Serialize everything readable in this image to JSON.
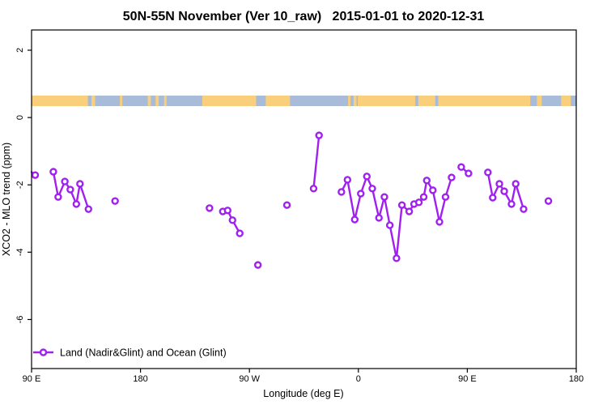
{
  "chart_data": {
    "type": "scatter-line",
    "title": "50N-55N November (Ver 10_raw)   2015-01-01 to 2020-12-31",
    "xlabel": "Longitude (deg E)",
    "ylabel": "XCO2 - MLO trend (ppm)",
    "legend": {
      "label": "Land (Nadir&Glint) and Ocean (Glint)"
    },
    "colors": {
      "series": "#A020F0",
      "land": "#F9CF7B",
      "ocean": "#A8BBD8",
      "axis": "#000000"
    },
    "x_axis_wrap_ticks": [
      {
        "lon": 90,
        "label": "90 E"
      },
      {
        "lon": 180,
        "label": "180"
      },
      {
        "lon": 270,
        "label": "90 W"
      },
      {
        "lon": 360,
        "label": "0"
      },
      {
        "lon": 450,
        "label": "90 E"
      },
      {
        "lon": 540,
        "label": "180"
      }
    ],
    "y_ticks": [
      {
        "value": 2,
        "label": "2"
      },
      {
        "value": 0,
        "label": "0"
      },
      {
        "value": -2,
        "label": "-2"
      },
      {
        "value": -4,
        "label": "-4"
      },
      {
        "value": -6,
        "label": "-6"
      }
    ],
    "xlim_axis": [
      90,
      540
    ],
    "ylim": [
      -7.46,
      2.6
    ],
    "map_band": {
      "top_value": 0.652,
      "bottom_value": 0.339,
      "ocean_extent": [
        90,
        540
      ],
      "land_segments": [
        [
          90,
          136.5
        ],
        [
          139.5,
          142.5
        ],
        [
          163,
          165
        ],
        [
          186,
          188.5
        ],
        [
          192.5,
          195
        ],
        [
          199.5,
          201.5
        ],
        [
          231,
          275.5
        ],
        [
          283.5,
          303.5
        ],
        [
          351.5,
          353.5
        ],
        [
          356,
          358.5
        ],
        [
          359.5,
          502
        ],
        [
          507.5,
          511.5
        ],
        [
          527.5,
          535.5
        ]
      ],
      "ocean_specks": [
        [
          407,
          409.5
        ],
        [
          423.5,
          426
        ]
      ]
    },
    "series_groups": [
      {
        "lead": [
          90,
          -1.62
        ],
        "points": [
          [
            93,
            -1.71
          ]
        ]
      },
      {
        "points": [
          [
            108,
            -1.61
          ],
          [
            112,
            -2.36
          ],
          [
            117.5,
            -1.9
          ],
          [
            122,
            -2.14
          ],
          [
            127,
            -2.57
          ],
          [
            130,
            -1.97
          ],
          [
            137,
            -2.72
          ]
        ]
      },
      {
        "points": [
          [
            159,
            -2.48
          ]
        ]
      },
      {
        "points": [
          [
            237,
            -2.69
          ]
        ]
      },
      {
        "points": [
          [
            248,
            -2.79
          ],
          [
            252,
            -2.76
          ],
          [
            256,
            -3.05
          ],
          [
            262,
            -3.44
          ]
        ]
      },
      {
        "points": [
          [
            277,
            -4.38
          ]
        ]
      },
      {
        "points": [
          [
            301,
            -2.6
          ]
        ]
      },
      {
        "points": [
          [
            323,
            -2.11
          ],
          [
            327.5,
            -0.53
          ]
        ]
      },
      {
        "points": [
          [
            346,
            -2.21
          ],
          [
            351,
            -1.85
          ],
          [
            357,
            -3.03
          ],
          [
            362,
            -2.26
          ],
          [
            367,
            -1.75
          ],
          [
            371.5,
            -2.11
          ],
          [
            377,
            -2.98
          ],
          [
            381.5,
            -2.36
          ],
          [
            386,
            -3.2
          ],
          [
            391.5,
            -4.18
          ],
          [
            396,
            -2.6
          ],
          [
            402,
            -2.79
          ],
          [
            406,
            -2.57
          ],
          [
            410,
            -2.52
          ],
          [
            414,
            -2.36
          ],
          [
            416.5,
            -1.87
          ],
          [
            421.5,
            -2.16
          ],
          [
            427,
            -3.1
          ],
          [
            432,
            -2.36
          ],
          [
            437,
            -1.78
          ]
        ]
      },
      {
        "points": [
          [
            445,
            -1.47
          ],
          [
            451,
            -1.66
          ]
        ]
      },
      {
        "points": [
          [
            467,
            -1.63
          ],
          [
            471,
            -2.38
          ],
          [
            476.5,
            -1.97
          ],
          [
            480.5,
            -2.19
          ],
          [
            486.5,
            -2.57
          ],
          [
            490,
            -1.97
          ],
          [
            496.5,
            -2.72
          ]
        ]
      },
      {
        "points": [
          [
            517,
            -2.48
          ]
        ]
      }
    ]
  }
}
